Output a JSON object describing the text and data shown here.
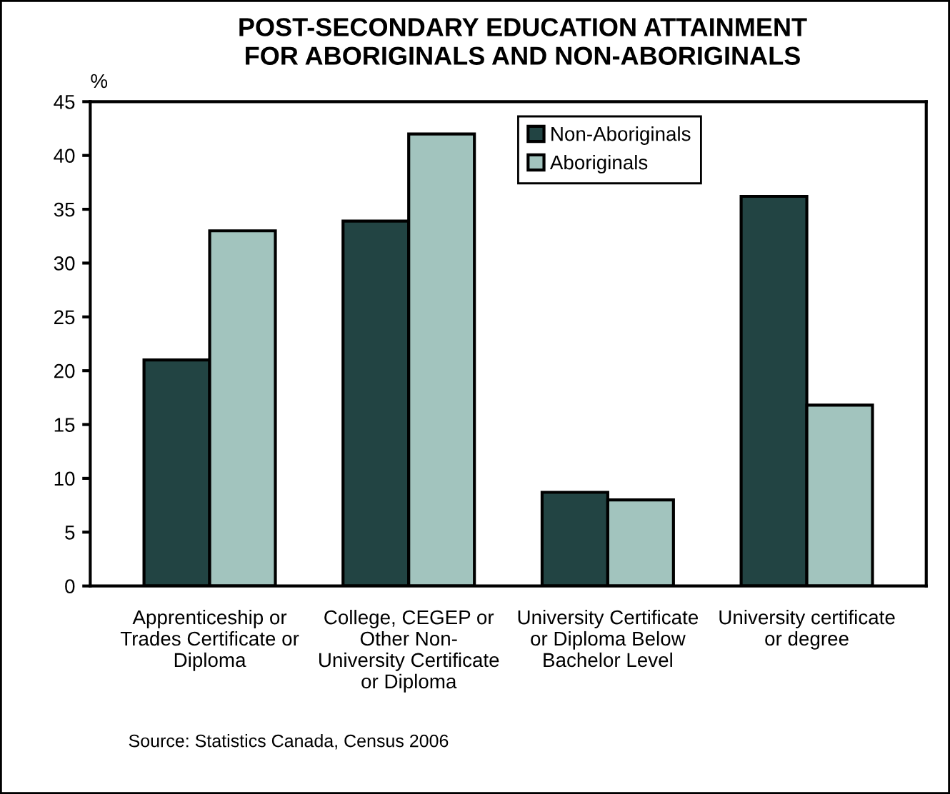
{
  "chart_data": {
    "type": "bar",
    "title": "POST-SECONDARY EDUCATION ATTAINMENT\nFOR ABORIGINALS AND NON-ABORIGINALS",
    "ylabel": "%",
    "categories": [
      "Apprenticeship or\nTrades Certificate or\nDiploma",
      "College, CEGEP or\nOther Non-\nUniversity Certificate\nor Diploma",
      "University Certificate\nor Diploma Below\nBachelor Level",
      "University certificate\nor degree"
    ],
    "series": [
      {
        "name": "Non-Aboriginals",
        "color": "#224443",
        "values": [
          21.0,
          33.9,
          8.7,
          36.2
        ]
      },
      {
        "name": "Aboriginals",
        "color": "#a2c4be",
        "values": [
          33.0,
          42.0,
          8.0,
          16.8
        ]
      }
    ],
    "ylim": [
      0,
      45
    ],
    "yticks": [
      0,
      5,
      10,
      15,
      20,
      25,
      30,
      35,
      40,
      45
    ],
    "grid": false,
    "legend": "top",
    "annotations": [
      "Source: Statistics Canada, Census 2006"
    ]
  }
}
